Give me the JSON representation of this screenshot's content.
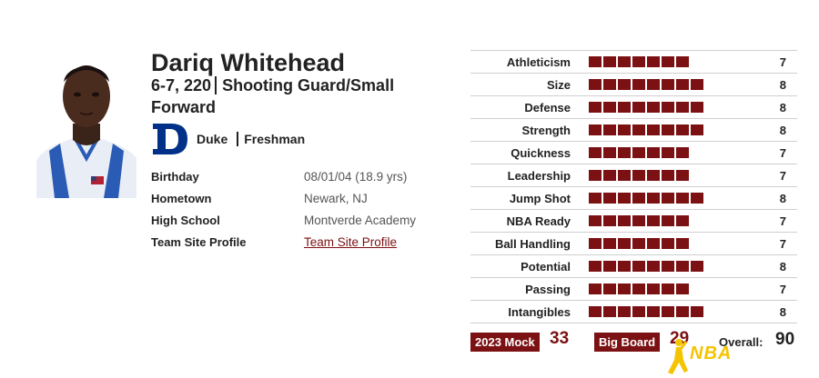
{
  "player": {
    "name": "Dariq Whitehead",
    "measurements": "6-7, 220",
    "position": "Shooting Guard/Small Forward",
    "school": "Duke",
    "class_year": "Freshman"
  },
  "info": [
    {
      "label": "Birthday",
      "value": "08/01/04 (18.9 yrs)"
    },
    {
      "label": "Hometown",
      "value": "Newark, NJ"
    },
    {
      "label": "High School",
      "value": "Montverde Academy"
    },
    {
      "label": "Team Site Profile",
      "value": "Team Site Profile"
    }
  ],
  "ratings": [
    {
      "label": "Athleticism",
      "value": 7
    },
    {
      "label": "Size",
      "value": 8
    },
    {
      "label": "Defense",
      "value": 8
    },
    {
      "label": "Strength",
      "value": 8
    },
    {
      "label": "Quickness",
      "value": 7
    },
    {
      "label": "Leadership",
      "value": 7
    },
    {
      "label": "Jump Shot",
      "value": 8
    },
    {
      "label": "NBA Ready",
      "value": 7
    },
    {
      "label": "Ball Handling",
      "value": 7
    },
    {
      "label": "Potential",
      "value": 8
    },
    {
      "label": "Passing",
      "value": 7
    },
    {
      "label": "Intangibles",
      "value": 8
    }
  ],
  "footer": {
    "mock_label": "2023 Mock",
    "mock_value": "33",
    "board_label": "Big Board",
    "board_value": "29",
    "overall_label": "Overall:",
    "overall_value": "90"
  },
  "watermark": {
    "text": "NBA"
  },
  "colors": {
    "accent": "#7b1113",
    "duke_blue": "#003087",
    "watermark": "#f5c400"
  }
}
